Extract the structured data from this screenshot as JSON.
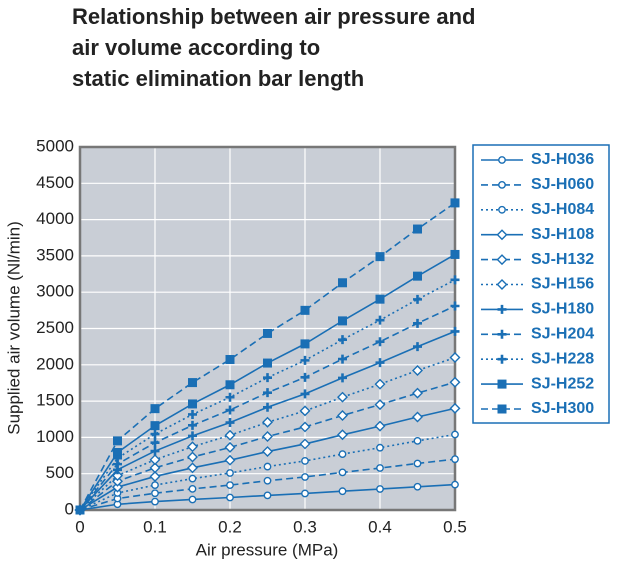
{
  "chart_data": {
    "type": "line",
    "title": [
      "Relationship between air pressure and",
      "air volume according to",
      "static elimination bar length"
    ],
    "x_label": "Air pressure (MPa)",
    "y_label": "Supplied air volume (Nl/min)",
    "x": [
      0,
      0.05,
      0.1,
      0.15,
      0.2,
      0.25,
      0.3,
      0.35,
      0.4,
      0.45,
      0.5
    ],
    "xlim": [
      0,
      0.5
    ],
    "xticks": [
      0,
      0.1,
      0.2,
      0.3,
      0.4,
      0.5
    ],
    "ylim": [
      0,
      5000
    ],
    "yticks": [
      0,
      500,
      1000,
      1500,
      2000,
      2500,
      3000,
      3500,
      4000,
      4500,
      5000
    ],
    "grid": true,
    "legend": "right",
    "series": [
      {
        "name": "SJ-H036",
        "color": "#1a6fb5",
        "marker": "circle",
        "linestyle": "solid",
        "values": [
          0,
          79,
          116,
          145,
          172,
          201,
          228,
          259,
          289,
          320,
          350
        ]
      },
      {
        "name": "SJ-H060",
        "color": "#1a6fb5",
        "marker": "circle",
        "linestyle": "dashed",
        "values": [
          0,
          158,
          231,
          291,
          343,
          403,
          455,
          518,
          578,
          641,
          700
        ]
      },
      {
        "name": "SJ-H084",
        "color": "#1a6fb5",
        "marker": "circle",
        "linestyle": "dotted",
        "values": [
          0,
          234,
          343,
          432,
          510,
          598,
          676,
          770,
          858,
          952,
          1040
        ]
      },
      {
        "name": "SJ-H108",
        "color": "#1a6fb5",
        "marker": "diamond",
        "linestyle": "solid",
        "values": [
          0,
          315,
          462,
          581,
          686,
          805,
          910,
          1036,
          1155,
          1281,
          1400
        ]
      },
      {
        "name": "SJ-H132",
        "color": "#1a6fb5",
        "marker": "diamond",
        "linestyle": "dashed",
        "values": [
          0,
          396,
          581,
          730,
          862,
          1012,
          1144,
          1302,
          1452,
          1610,
          1760
        ]
      },
      {
        "name": "SJ-H156",
        "color": "#1a6fb5",
        "marker": "diamond",
        "linestyle": "dotted",
        "values": [
          0,
          473,
          693,
          872,
          1029,
          1208,
          1365,
          1554,
          1733,
          1922,
          2100
        ]
      },
      {
        "name": "SJ-H180",
        "color": "#1a6fb5",
        "marker": "plus",
        "linestyle": "solid",
        "values": [
          0,
          554,
          812,
          1021,
          1205,
          1415,
          1599,
          1820,
          2030,
          2251,
          2460
        ]
      },
      {
        "name": "SJ-H204",
        "color": "#1a6fb5",
        "marker": "plus",
        "linestyle": "dashed",
        "values": [
          0,
          632,
          927,
          1166,
          1377,
          1616,
          1827,
          2079,
          2318,
          2571,
          2810
        ]
      },
      {
        "name": "SJ-H228",
        "color": "#1a6fb5",
        "marker": "plus",
        "linestyle": "dotted",
        "values": [
          0,
          713,
          1046,
          1316,
          1553,
          1823,
          2061,
          2346,
          2615,
          2901,
          3170
        ]
      },
      {
        "name": "SJ-H252",
        "color": "#1a6fb5",
        "marker": "square",
        "linestyle": "solid",
        "values": [
          0,
          792,
          1162,
          1461,
          1725,
          2024,
          2288,
          2605,
          2904,
          3221,
          3520
        ]
      },
      {
        "name": "SJ-H300",
        "color": "#1a6fb5",
        "marker": "square",
        "linestyle": "dashed",
        "values": [
          0,
          952,
          1396,
          1755,
          2073,
          2432,
          2750,
          3130,
          3490,
          3870,
          4230
        ]
      }
    ]
  }
}
